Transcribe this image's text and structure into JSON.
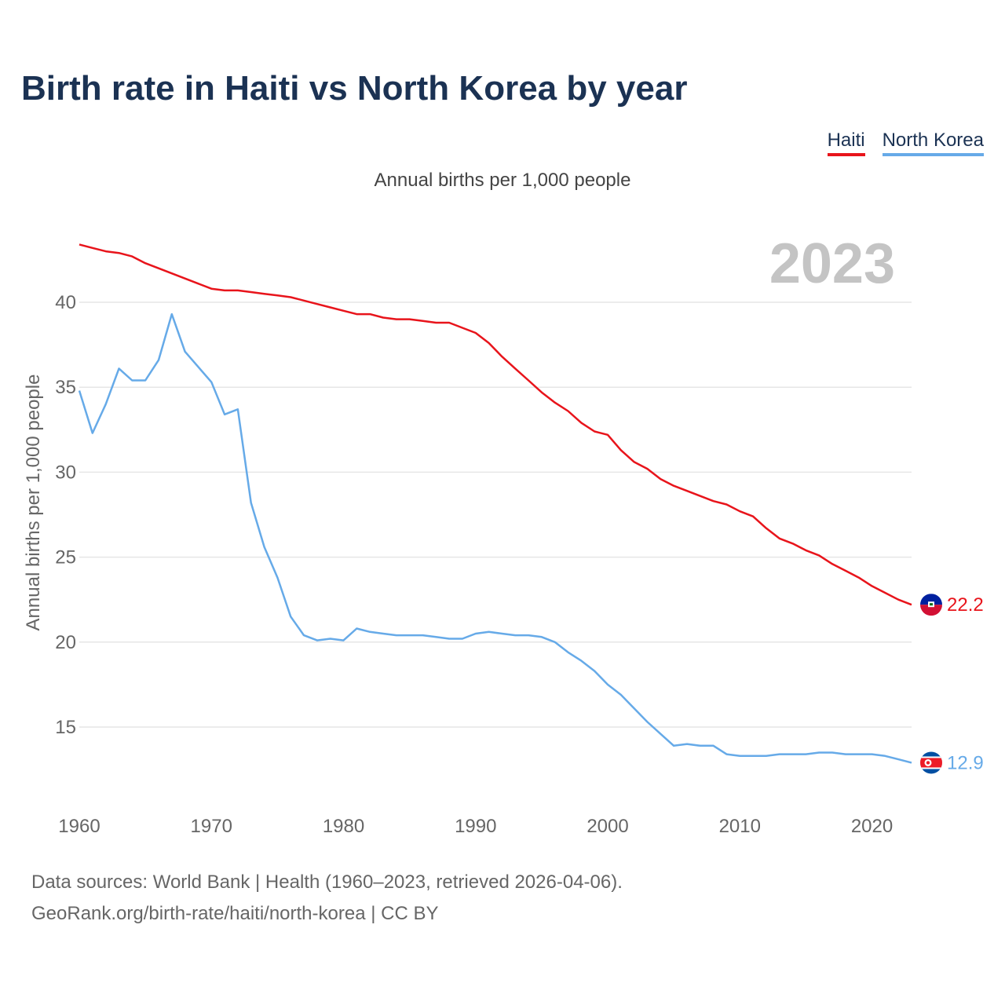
{
  "title": "Birth rate in Haiti vs North Korea by year",
  "subtitle": "Annual births per 1,000 people",
  "legend": {
    "haiti": "Haiti",
    "north_korea": "North Korea"
  },
  "year_label": "2023",
  "footer": {
    "line1": "Data sources: World Bank | Health (1960–2023, retrieved 2026-04-06).",
    "line2": "GeoRank.org/birth-rate/haiti/north-korea | CC BY"
  },
  "colors": {
    "haiti": "#e8141b",
    "north_korea": "#66aae8",
    "grid": "#e6e6e6",
    "year": "#c4c4c4"
  },
  "chart_data": {
    "type": "line",
    "title": "Birth rate in Haiti vs North Korea by year",
    "ylabel": "Annual births per 1,000 people",
    "xlabel": "",
    "xlim": [
      1960,
      2023
    ],
    "ylim": [
      11.5,
      43.5
    ],
    "x_ticks": [
      1960,
      1970,
      1980,
      1990,
      2000,
      2010,
      2020
    ],
    "y_ticks": [
      15,
      20,
      25,
      30,
      35,
      40
    ],
    "x": [
      1960,
      1961,
      1962,
      1963,
      1964,
      1965,
      1966,
      1967,
      1968,
      1969,
      1970,
      1971,
      1972,
      1973,
      1974,
      1975,
      1976,
      1977,
      1978,
      1979,
      1980,
      1981,
      1982,
      1983,
      1984,
      1985,
      1986,
      1987,
      1988,
      1989,
      1990,
      1991,
      1992,
      1993,
      1994,
      1995,
      1996,
      1997,
      1998,
      1999,
      2000,
      2001,
      2002,
      2003,
      2004,
      2005,
      2006,
      2007,
      2008,
      2009,
      2010,
      2011,
      2012,
      2013,
      2014,
      2015,
      2016,
      2017,
      2018,
      2019,
      2020,
      2021,
      2022,
      2023
    ],
    "series": [
      {
        "name": "Haiti",
        "end_label": "22.2",
        "values": [
          43.4,
          43.2,
          43.0,
          42.9,
          42.7,
          42.3,
          42.0,
          41.7,
          41.4,
          41.1,
          40.8,
          40.7,
          40.7,
          40.6,
          40.5,
          40.4,
          40.3,
          40.1,
          39.9,
          39.7,
          39.5,
          39.3,
          39.3,
          39.1,
          39.0,
          39.0,
          38.9,
          38.8,
          38.8,
          38.5,
          38.2,
          37.6,
          36.8,
          36.1,
          35.4,
          34.7,
          34.1,
          33.6,
          32.9,
          32.4,
          32.2,
          31.3,
          30.6,
          30.2,
          29.6,
          29.2,
          28.9,
          28.6,
          28.3,
          28.1,
          27.7,
          27.4,
          26.7,
          26.1,
          25.8,
          25.4,
          25.1,
          24.6,
          24.2,
          23.8,
          23.3,
          22.9,
          22.5,
          22.2
        ]
      },
      {
        "name": "North Korea",
        "end_label": "12.9",
        "values": [
          34.8,
          32.3,
          34.0,
          36.1,
          35.4,
          35.4,
          36.6,
          39.3,
          37.1,
          36.2,
          35.3,
          33.4,
          33.7,
          28.2,
          25.6,
          23.8,
          21.5,
          20.4,
          20.1,
          20.2,
          20.1,
          20.8,
          20.6,
          20.5,
          20.4,
          20.4,
          20.4,
          20.3,
          20.2,
          20.2,
          20.5,
          20.6,
          20.5,
          20.4,
          20.4,
          20.3,
          20.0,
          19.4,
          18.9,
          18.3,
          17.5,
          16.9,
          16.1,
          15.3,
          14.6,
          13.9,
          14.0,
          13.9,
          13.9,
          13.4,
          13.3,
          13.3,
          13.3,
          13.4,
          13.4,
          13.4,
          13.5,
          13.5,
          13.4,
          13.4,
          13.4,
          13.3,
          13.1,
          12.9
        ]
      }
    ]
  }
}
